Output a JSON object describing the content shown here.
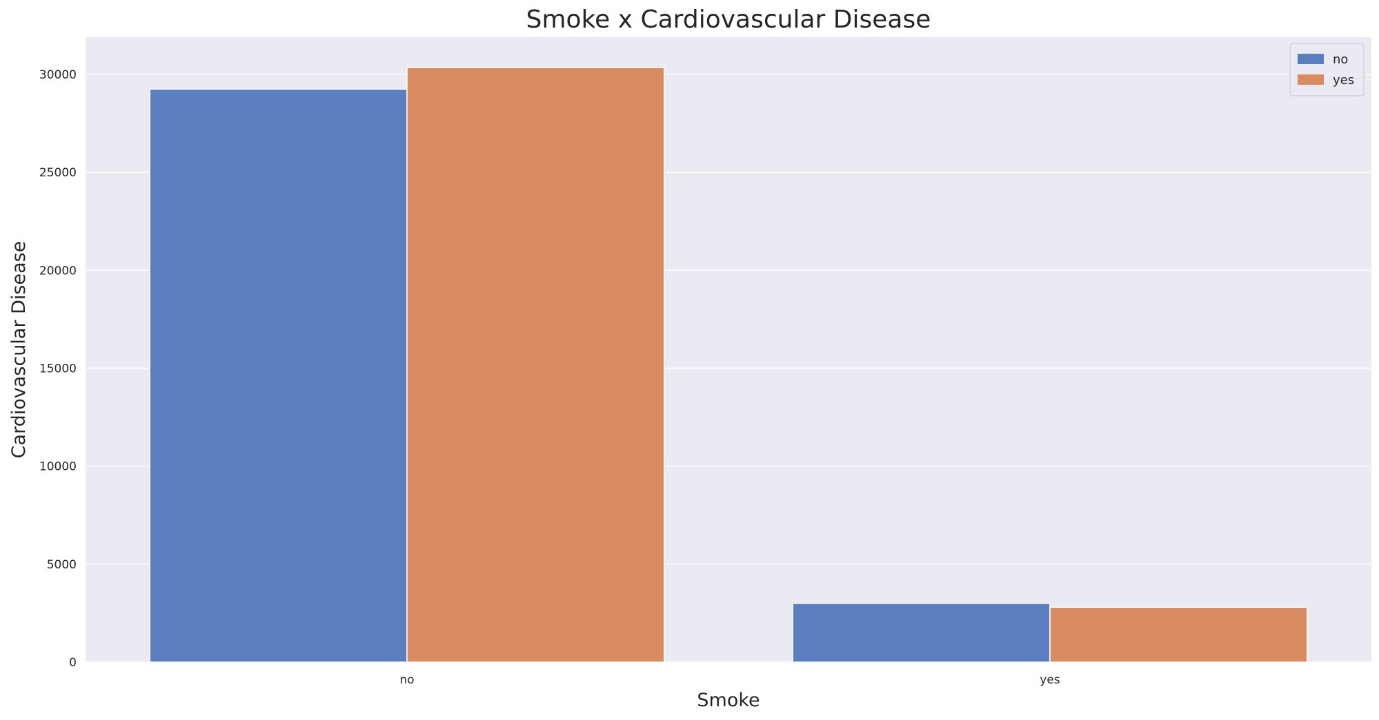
{
  "chart_data": {
    "type": "bar",
    "title": "Smoke x Cardiovascular Disease",
    "xlabel": "Smoke",
    "ylabel": "Cardiovascular Disease",
    "categories": [
      "no",
      "yes"
    ],
    "series": [
      {
        "name": "no",
        "values": [
          29250,
          3000
        ],
        "color": "#5b7ebf"
      },
      {
        "name": "yes",
        "values": [
          30350,
          2800
        ],
        "color": "#d88a60"
      }
    ],
    "ylim": [
      0,
      31900
    ],
    "yticks": [
      0,
      5000,
      10000,
      15000,
      20000,
      25000,
      30000
    ],
    "ytick_labels": [
      "0",
      "5000",
      "10000",
      "15000",
      "20000",
      "25000",
      "30000"
    ],
    "grid": true,
    "background_color": "#eaeaf2",
    "legend": {
      "title": "",
      "placement": "top-right"
    }
  }
}
